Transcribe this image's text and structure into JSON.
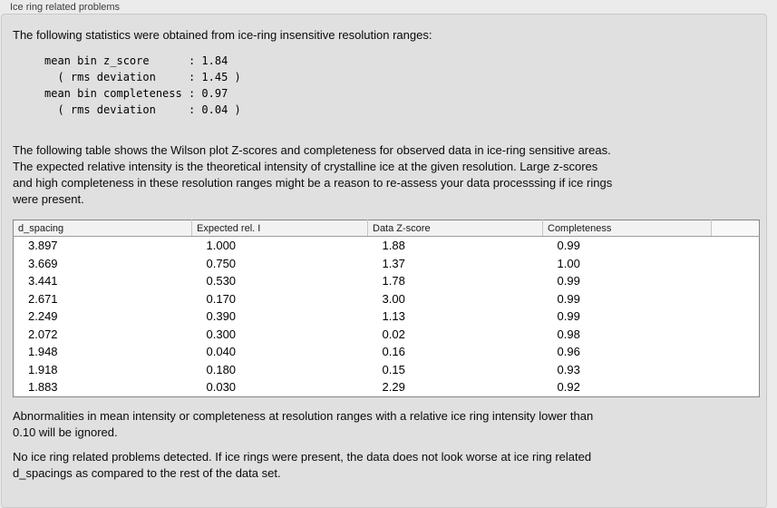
{
  "panel": {
    "title": "Ice ring related problems"
  },
  "intro_text": "The following statistics were obtained from ice-ring insensitive resolution ranges:",
  "stats_text": "mean bin z_score      : 1.84\n  ( rms deviation     : 1.45 )\nmean bin completeness : 0.97\n  ( rms deviation     : 0.04 )",
  "stats": {
    "mean_bin_z_score": "1.84",
    "z_score_rms_deviation": "1.45",
    "mean_bin_completeness": "0.97",
    "completeness_rms_deviation": "0.04"
  },
  "table_intro_text": "The following table shows the Wilson plot Z-scores and completeness for observed data in ice-ring sensitive areas.\nThe expected relative intensity is the theoretical intensity of crystalline ice at the given resolution. Large z-scores\nand high completeness in these resolution ranges might be a reason to re-assess your data processsing if ice rings\nwere present.",
  "table": {
    "columns": [
      "d_spacing",
      "Expected rel. I",
      "Data Z-score",
      "Completeness",
      ""
    ],
    "rows": [
      [
        "3.897",
        "1.000",
        "1.88",
        "0.99"
      ],
      [
        "3.669",
        "0.750",
        "1.37",
        "1.00"
      ],
      [
        "3.441",
        "0.530",
        "1.78",
        "0.99"
      ],
      [
        "2.671",
        "0.170",
        "3.00",
        "0.99"
      ],
      [
        "2.249",
        "0.390",
        "1.13",
        "0.99"
      ],
      [
        "2.072",
        "0.300",
        "0.02",
        "0.98"
      ],
      [
        "1.948",
        "0.040",
        "0.16",
        "0.96"
      ],
      [
        "1.918",
        "0.180",
        "0.15",
        "0.93"
      ],
      [
        "1.883",
        "0.030",
        "2.29",
        "0.92"
      ]
    ]
  },
  "note1_text": "Abnormalities in mean intensity or completeness at resolution ranges with a relative ice ring intensity lower than\n0.10 will be ignored.",
  "note2_text": "No ice ring related problems detected. If ice rings were present, the data does not look worse at ice ring related\nd_spacings as compared to the rest of the data set.",
  "colors": {
    "page_bg": "#ebebeb",
    "panel_bg": "#e0e0e0",
    "table_bg": "#ffffff",
    "table_border": "#858585",
    "table_header_bg": "#f2f2f2"
  }
}
